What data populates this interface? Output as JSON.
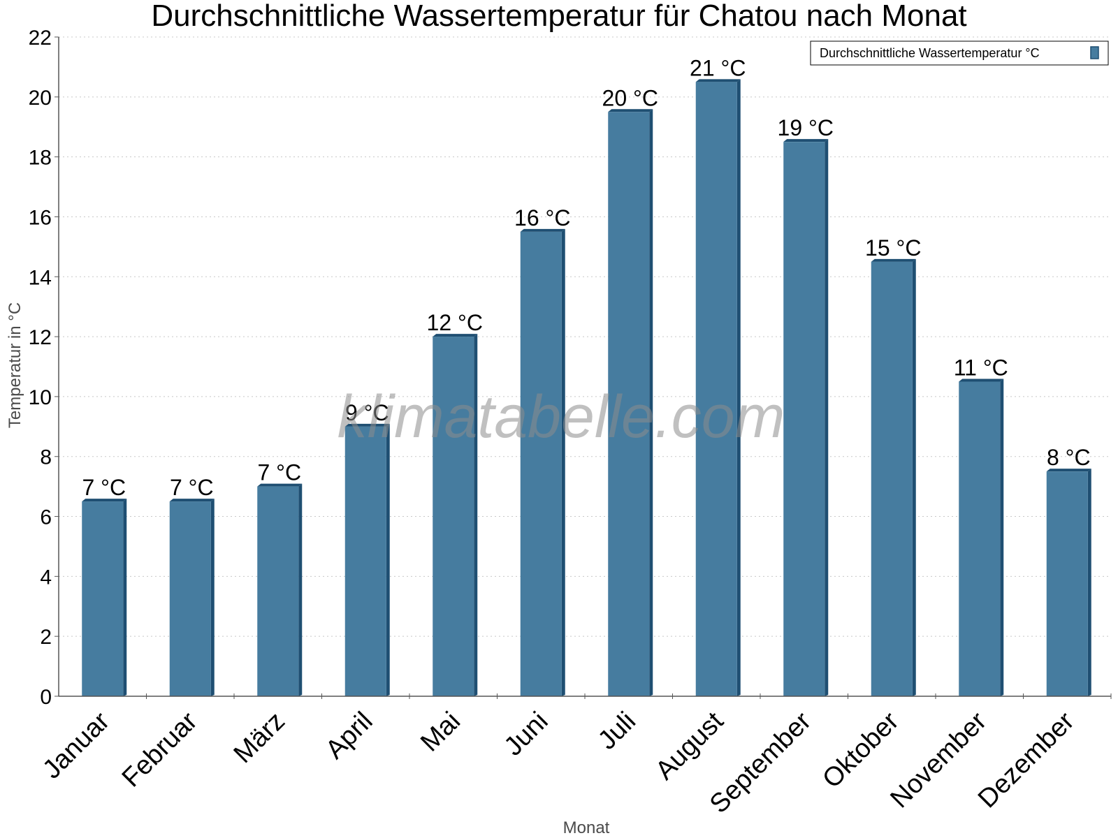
{
  "watermark": "klimatabelle.com",
  "colors": {
    "bar_face": "#467c9f",
    "bar_side": "#1f4f72",
    "bar_top": "#1f4f72",
    "grid": "#c8c8c8",
    "axis": "#555555"
  },
  "chart_data": {
    "type": "bar",
    "title": "Durchschnittliche Wassertemperatur für Chatou nach Monat",
    "xlabel": "Monat",
    "ylabel": "Temperatur in °C",
    "ylim": [
      0,
      22
    ],
    "yticks": [
      "0",
      "2",
      "4",
      "6",
      "8",
      "10",
      "12",
      "14",
      "16",
      "18",
      "20",
      "22"
    ],
    "grid": "horizontal dotted",
    "legend_position": "top-right",
    "categories": [
      "Januar",
      "Februar",
      "März",
      "April",
      "Mai",
      "Juni",
      "Juli",
      "August",
      "September",
      "Oktober",
      "November",
      "Dezember"
    ],
    "series": [
      {
        "name": "Durchschnittliche Wassertemperatur °C",
        "values": [
          6.5,
          6.5,
          7,
          9,
          12,
          15.5,
          19.5,
          20.5,
          18.5,
          14.5,
          10.5,
          7.5
        ],
        "labels": [
          "7 °C",
          "7 °C",
          "7 °C",
          "9 °C",
          "12 °C",
          "16 °C",
          "20 °C",
          "21 °C",
          "19 °C",
          "15 °C",
          "11 °C",
          "8 °C"
        ]
      }
    ]
  }
}
